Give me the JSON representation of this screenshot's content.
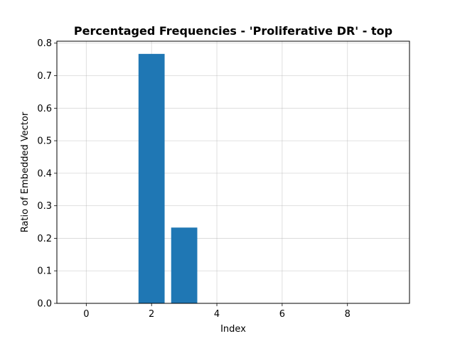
{
  "chart_data": {
    "type": "bar",
    "title": "Percentaged Frequencies - 'Proliferative DR' - top",
    "xlabel": "Index",
    "ylabel": "Ratio of Embedded Vector",
    "x": [
      0,
      1,
      2,
      3,
      4,
      5,
      6,
      7,
      8,
      9
    ],
    "values": [
      0,
      0,
      0.767,
      0.233,
      0,
      0,
      0,
      0,
      0,
      0
    ],
    "xlim": [
      -0.9,
      9.9
    ],
    "ylim": [
      0,
      0.806
    ],
    "xticks": [
      0,
      2,
      4,
      6,
      8
    ],
    "xtick_labels": [
      "0",
      "2",
      "4",
      "6",
      "8"
    ],
    "yticks": [
      0.0,
      0.1,
      0.2,
      0.3,
      0.4,
      0.5,
      0.6,
      0.7,
      0.8
    ],
    "ytick_labels": [
      "0.0",
      "0.1",
      "0.2",
      "0.3",
      "0.4",
      "0.5",
      "0.6",
      "0.7",
      "0.8"
    ],
    "grid": true,
    "legend": "none",
    "bar_color": "#1f77b4",
    "bar_width": 0.8
  }
}
